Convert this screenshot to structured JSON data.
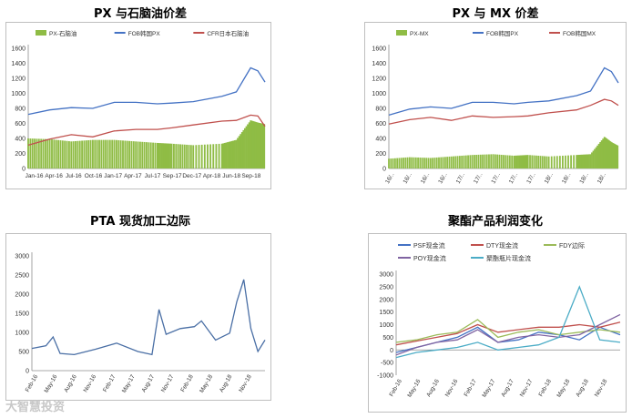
{
  "watermark": "大智慧投资",
  "chart_data": [
    {
      "type": "line",
      "title": "PX 与石脑油价差",
      "ylim": [
        0,
        1600
      ],
      "yticks": [
        "0",
        "200",
        "400",
        "600",
        "800",
        "1000",
        "1200",
        "1400",
        "1600"
      ],
      "xticks": [
        "Jan-16",
        "Apr-16",
        "Jul-16",
        "Oct-16",
        "Jan-17",
        "Apr-17",
        "Jul-17",
        "Sep-17",
        "Dec-17",
        "Apr-18",
        "Jun-18",
        "Sep-18"
      ],
      "legend_position": "top",
      "x": [
        "2016-01",
        "2016-04",
        "2016-07",
        "2016-10",
        "2017-01",
        "2017-04",
        "2017-07",
        "2017-09",
        "2017-12",
        "2018-04",
        "2018-06",
        "2018-08",
        "2018-09",
        "2018-10"
      ],
      "series": [
        {
          "name": "PX-石脑油",
          "kind": "bar",
          "color": "#8fbc45",
          "values": [
            400,
            390,
            360,
            380,
            380,
            360,
            340,
            330,
            310,
            330,
            380,
            640,
            610,
            590
          ]
        },
        {
          "name": "FOB韩国PX",
          "kind": "line",
          "color": "#4472c4",
          "values": [
            720,
            780,
            810,
            800,
            880,
            880,
            860,
            870,
            890,
            960,
            1020,
            1340,
            1300,
            1150
          ]
        },
        {
          "name": "CFR日本石脑油",
          "kind": "line",
          "color": "#c0504d",
          "values": [
            310,
            390,
            450,
            420,
            500,
            520,
            520,
            540,
            580,
            630,
            640,
            710,
            700,
            560
          ]
        }
      ]
    },
    {
      "type": "line",
      "title": "PX 与 MX 价差",
      "ylim": [
        0,
        1600
      ],
      "yticks": [
        "0",
        "200",
        "400",
        "600",
        "800",
        "1000",
        "1200",
        "1400",
        "1600"
      ],
      "xticks": [
        "16/..",
        "16/..",
        "16/..",
        "16/..",
        "17/..",
        "17/..",
        "17/..",
        "17/..",
        "17/..",
        "18/..",
        "18/..",
        "18/..",
        "18/.."
      ],
      "legend_position": "top",
      "x": [
        "2016-01",
        "2016-04",
        "2016-07",
        "2016-10",
        "2017-01",
        "2017-04",
        "2017-07",
        "2017-09",
        "2017-12",
        "2018-04",
        "2018-06",
        "2018-08",
        "2018-09",
        "2018-10"
      ],
      "series": [
        {
          "name": "PX-MX",
          "kind": "bar",
          "color": "#8fbc45",
          "values": [
            130,
            150,
            140,
            160,
            180,
            190,
            170,
            180,
            160,
            180,
            190,
            420,
            350,
            300
          ]
        },
        {
          "name": "FOB韩国PX",
          "kind": "line",
          "color": "#4472c4",
          "values": [
            710,
            790,
            820,
            800,
            880,
            880,
            860,
            880,
            900,
            970,
            1030,
            1340,
            1290,
            1140
          ]
        },
        {
          "name": "FOB韩国MX",
          "kind": "line",
          "color": "#c0504d",
          "values": [
            590,
            650,
            680,
            640,
            700,
            680,
            690,
            700,
            740,
            780,
            840,
            920,
            900,
            840
          ]
        }
      ]
    },
    {
      "type": "line",
      "title": "PTA 现货加工边际",
      "ylim": [
        0,
        3000
      ],
      "yticks": [
        "0",
        "500",
        "1000",
        "1500",
        "2000",
        "2500",
        "3000"
      ],
      "xticks": [
        "Feb-16",
        "May-16",
        "Aug-16",
        "Nov-16",
        "Feb-17",
        "May-17",
        "Aug-17",
        "Nov-17",
        "Feb-18",
        "May-18",
        "Aug-18",
        "Nov-18"
      ],
      "x": [
        "2016-02",
        "2016-04",
        "2016-05",
        "2016-06",
        "2016-08",
        "2016-11",
        "2017-02",
        "2017-05",
        "2017-07",
        "2017-08",
        "2017-09",
        "2017-11",
        "2018-01",
        "2018-02",
        "2018-04",
        "2018-06",
        "2018-07",
        "2018-08",
        "2018-09",
        "2018-10",
        "2018-11"
      ],
      "series": [
        {
          "name": "",
          "kind": "line",
          "color": "#4a6fa5",
          "values": [
            580,
            650,
            880,
            450,
            420,
            560,
            720,
            500,
            420,
            1600,
            950,
            1100,
            1150,
            1300,
            800,
            980,
            1800,
            2380,
            1100,
            500,
            800
          ]
        }
      ]
    },
    {
      "type": "line",
      "title": "聚酯产品利润变化",
      "ylim": [
        -1000,
        3000
      ],
      "yticks": [
        "-1000",
        "-500",
        "0",
        "500",
        "1000",
        "1500",
        "2000",
        "2500",
        "3000"
      ],
      "xticks": [
        "Feb-16",
        "May-16",
        "Aug-16",
        "Nov-16",
        "Feb-17",
        "May-17",
        "Aug-17",
        "Nov-17",
        "Feb-18",
        "May-18",
        "Aug-18",
        "Nov-18"
      ],
      "legend_position": "top",
      "x": [
        "2016-02",
        "2016-05",
        "2016-08",
        "2016-11",
        "2017-02",
        "2017-05",
        "2017-08",
        "2017-11",
        "2018-02",
        "2018-05",
        "2018-08",
        "2018-11"
      ],
      "series": [
        {
          "name": "PSF现金流",
          "kind": "line",
          "color": "#4472c4",
          "values": [
            -100,
            100,
            300,
            500,
            900,
            300,
            400,
            700,
            600,
            400,
            900,
            600
          ]
        },
        {
          "name": "DTY现金流",
          "kind": "line",
          "color": "#c0504d",
          "values": [
            200,
            350,
            500,
            650,
            1000,
            700,
            800,
            900,
            900,
            1000,
            900,
            1100
          ]
        },
        {
          "name": "FDY边际",
          "kind": "line",
          "color": "#9bbb59",
          "values": [
            300,
            400,
            600,
            700,
            1200,
            500,
            700,
            800,
            600,
            700,
            800,
            700
          ]
        },
        {
          "name": "POY现金流",
          "kind": "line",
          "color": "#8064a2",
          "values": [
            -200,
            100,
            300,
            400,
            800,
            300,
            500,
            600,
            500,
            600,
            1000,
            1400
          ]
        },
        {
          "name": "聚酯瓶片现金流",
          "kind": "line",
          "color": "#4bacc6",
          "values": [
            -300,
            -100,
            0,
            100,
            300,
            0,
            100,
            200,
            500,
            2500,
            400,
            300
          ]
        }
      ]
    }
  ]
}
